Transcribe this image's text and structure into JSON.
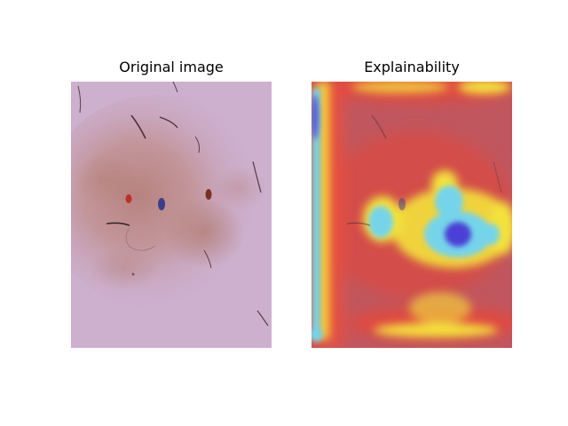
{
  "figure": {
    "panels": [
      {
        "title": "Original image",
        "content": "dermoscopy image of a skin lesion"
      },
      {
        "title": "Explainability",
        "content": "heatmap overlay on the skin lesion image"
      }
    ],
    "colors": {
      "skin": "#c9a8c9",
      "lesion": "#b9877f",
      "heat_red": "#d9504a",
      "heat_yellow": "#f5e23a",
      "heat_cyan": "#6fd0e8",
      "heat_blue": "#4a3fd8"
    }
  }
}
